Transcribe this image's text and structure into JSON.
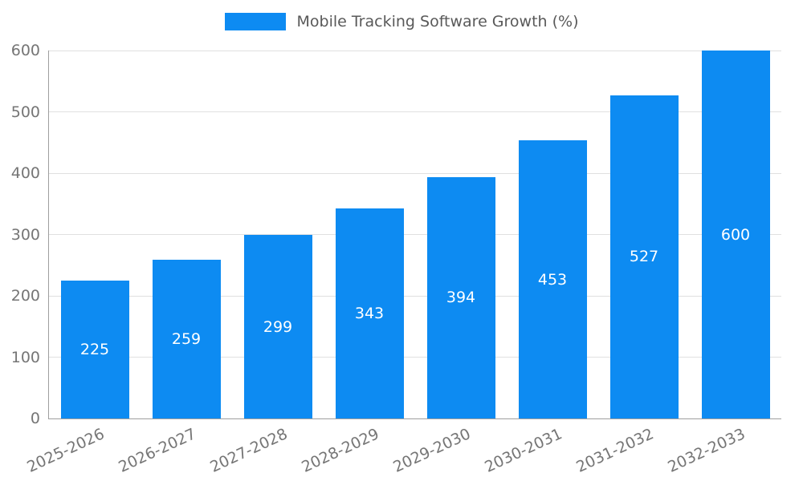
{
  "colors": {
    "bar": "#0d8bf2",
    "grid": "#e0e0e0",
    "axis": "#9e9e9e",
    "tick_text": "#757575",
    "title_text": "#595959",
    "bar_value_text": "#ffffff"
  },
  "chart_data": {
    "type": "bar",
    "title": "Mobile Tracking Software Growth (%)",
    "categories": [
      "2025-2026",
      "2026-2027",
      "2027-2028",
      "2028-2029",
      "2029-2030",
      "2030-2031",
      "2031-2032",
      "2032-2033"
    ],
    "values": [
      225,
      259,
      299,
      343,
      394,
      453,
      527,
      600
    ],
    "xlabel": "",
    "ylabel": "",
    "ylim": [
      0,
      600
    ],
    "yticks": [
      0,
      100,
      200,
      300,
      400,
      500,
      600
    ],
    "grid": true,
    "legend_position": "top-center",
    "value_labels": "inside-center-white"
  }
}
